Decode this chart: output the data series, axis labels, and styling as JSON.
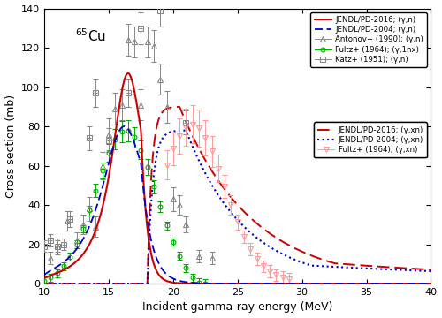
{
  "xlabel": "Incident gamma-ray energy (MeV)",
  "ylabel": "Cross section (mb)",
  "xlim": [
    10,
    40
  ],
  "ylim": [
    0,
    140
  ],
  "xticks": [
    10,
    15,
    20,
    25,
    30,
    35,
    40
  ],
  "yticks": [
    0,
    20,
    40,
    60,
    80,
    100,
    120,
    140
  ],
  "nucleus_label": "$^{65}$Cu",
  "color_red": "#cc0000",
  "color_blue": "#0000cc",
  "color_gray": "#888888",
  "color_green": "#00aa00",
  "color_pink": "#ff9999",
  "antonov_x": [
    10.5,
    11.0,
    11.8,
    12.5,
    13.0,
    13.5,
    14.0,
    14.5,
    15.0,
    15.5,
    16.0,
    16.5,
    17.0,
    17.5,
    18.0,
    18.5,
    19.0,
    19.5,
    20.0,
    20.5,
    21.0,
    22.0,
    23.0
  ],
  "antonov_y": [
    13,
    19,
    32,
    22,
    30,
    38,
    29,
    60,
    76,
    89,
    91,
    124,
    123,
    91,
    123,
    121,
    104,
    90,
    43,
    40,
    30,
    14,
    13
  ],
  "antonov_yerr": [
    3,
    4,
    5,
    4,
    5,
    6,
    5,
    7,
    8,
    8,
    8,
    8,
    8,
    8,
    8,
    8,
    8,
    8,
    6,
    5,
    4,
    3,
    3
  ],
  "katz_x": [
    10.0,
    10.5,
    11.0,
    11.5,
    12.0,
    13.5,
    14.0,
    15.0,
    16.5,
    17.5,
    19.0,
    21.0
  ],
  "katz_y": [
    19,
    22,
    19,
    20,
    33,
    74,
    97,
    73,
    97,
    130,
    139,
    82
  ],
  "katz_yerr": [
    3,
    3,
    3,
    3,
    4,
    6,
    7,
    6,
    7,
    8,
    8,
    6
  ]
}
